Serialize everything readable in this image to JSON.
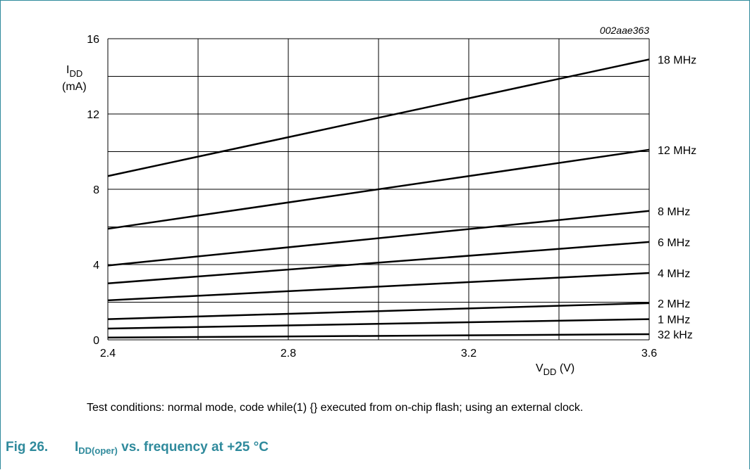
{
  "chart_data": {
    "type": "line",
    "code": "002aae363",
    "xlabel_main": "V",
    "xlabel_sub": "DD",
    "xlabel_unit": " (V)",
    "ylabel_main": "I",
    "ylabel_sub": "DD",
    "ylabel_unit": "(mA)",
    "xlim": [
      2.4,
      3.6
    ],
    "ylim": [
      0,
      16
    ],
    "xticks": [
      "2.4",
      "2.8",
      "3.2",
      "3.6"
    ],
    "xtick_values": [
      2.4,
      2.8,
      3.2,
      3.6
    ],
    "yticks": [
      "0",
      "4",
      "8",
      "12",
      "16"
    ],
    "ytick_values": [
      0,
      4,
      8,
      12,
      16
    ],
    "grid": true,
    "series": [
      {
        "name": "18 MHz",
        "x": [
          2.4,
          3.6
        ],
        "values": [
          8.7,
          14.9
        ]
      },
      {
        "name": "12 MHz",
        "x": [
          2.4,
          3.6
        ],
        "values": [
          5.9,
          10.1
        ]
      },
      {
        "name": "8 MHz",
        "x": [
          2.4,
          3.6
        ],
        "values": [
          3.95,
          6.85
        ]
      },
      {
        "name": "6 MHz",
        "x": [
          2.4,
          3.6
        ],
        "values": [
          3.0,
          5.2
        ]
      },
      {
        "name": "4 MHz",
        "x": [
          2.4,
          3.6
        ],
        "values": [
          2.1,
          3.55
        ]
      },
      {
        "name": "2 MHz",
        "x": [
          2.4,
          3.6
        ],
        "values": [
          1.1,
          1.95
        ]
      },
      {
        "name": "1 MHz",
        "x": [
          2.4,
          3.6
        ],
        "values": [
          0.6,
          1.1
        ]
      },
      {
        "name": "32 kHz",
        "x": [
          2.4,
          3.6
        ],
        "values": [
          0.12,
          0.3
        ]
      }
    ]
  },
  "note": "Test conditions: normal mode, code while(1) {} executed from on-chip flash; using an external clock.",
  "caption": {
    "number": "Fig 26.",
    "title_main": "I",
    "title_sub": "DD(oper)",
    "title_rest": " vs. frequency at +25 °C"
  }
}
